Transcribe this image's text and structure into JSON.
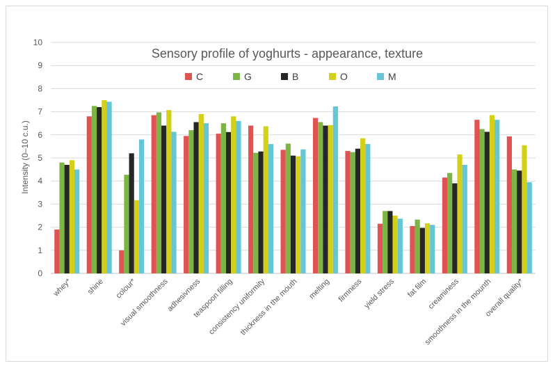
{
  "chart_data": {
    "type": "bar",
    "title": "Sensory profile of yoghurts - appearance, texture",
    "xlabel": "",
    "ylabel": "Intensity (0–10 c.u.)",
    "ylim": [
      0,
      10
    ],
    "yticks": [
      "0",
      "1",
      "2",
      "3",
      "4",
      "5",
      "6",
      "7",
      "8",
      "9",
      "10"
    ],
    "grid": true,
    "legend_position": "top",
    "categories": [
      "whey*",
      "shine",
      "colour*",
      "visual smoothness",
      "adhesivness",
      "teaspoon filling",
      "consistency uniformity",
      "thickness in the mouth",
      "melting",
      "firmness",
      "yield stress",
      "fat film",
      "creaminess",
      "smoothness in the mounth",
      "overall quality*"
    ],
    "series": [
      {
        "name": "C",
        "color": "#e05353",
        "values": [
          1.9,
          6.8,
          1.0,
          6.85,
          5.95,
          6.05,
          6.4,
          5.35,
          6.73,
          5.3,
          2.15,
          2.05,
          4.15,
          6.65,
          5.93
        ]
      },
      {
        "name": "G",
        "color": "#7db446",
        "values": [
          4.8,
          7.25,
          4.27,
          6.97,
          6.2,
          6.5,
          5.22,
          5.62,
          6.55,
          5.25,
          2.7,
          2.33,
          4.35,
          6.25,
          4.5
        ]
      },
      {
        "name": "B",
        "color": "#262626",
        "values": [
          4.7,
          7.2,
          5.2,
          6.4,
          6.55,
          6.12,
          5.28,
          5.1,
          6.4,
          5.4,
          2.7,
          1.97,
          3.9,
          6.13,
          4.45
        ]
      },
      {
        "name": "O",
        "color": "#d4d01a",
        "values": [
          4.9,
          7.5,
          3.17,
          7.07,
          6.9,
          6.8,
          6.37,
          5.07,
          6.42,
          5.85,
          2.5,
          2.17,
          5.15,
          6.85,
          5.55
        ]
      },
      {
        "name": "M",
        "color": "#66c6d6",
        "values": [
          4.5,
          7.43,
          5.8,
          6.13,
          6.5,
          6.6,
          5.6,
          5.37,
          7.23,
          5.6,
          2.37,
          2.1,
          4.7,
          6.65,
          3.95
        ]
      }
    ]
  }
}
